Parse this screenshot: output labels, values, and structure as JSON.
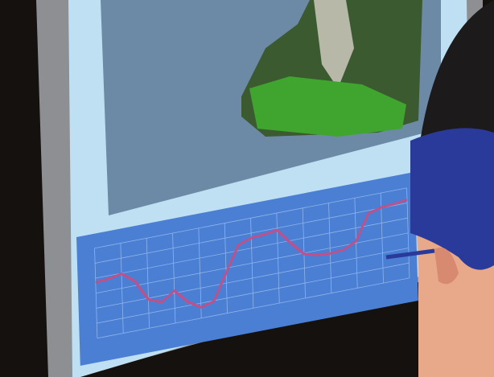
{
  "chart_data": {
    "type": "line",
    "color": "#c0508a",
    "x": [
      0,
      1,
      2,
      3,
      4,
      5,
      6,
      7,
      8,
      9,
      10,
      11,
      12,
      13,
      14,
      15,
      16,
      17,
      18,
      19,
      20,
      21,
      22,
      23,
      24
    ],
    "values": [
      6.2,
      6.3,
      6.6,
      5.5,
      3.2,
      2.6,
      3.6,
      2.1,
      1.2,
      1.6,
      4.5,
      7.3,
      7.8,
      7.9,
      8.1,
      6.4,
      4.9,
      4.5,
      4.4,
      4.5,
      5.2,
      8.0,
      8.4,
      8.5,
      8.7
    ],
    "xlim": [
      0,
      24
    ],
    "ylim": [
      0,
      10
    ],
    "grid": true
  }
}
